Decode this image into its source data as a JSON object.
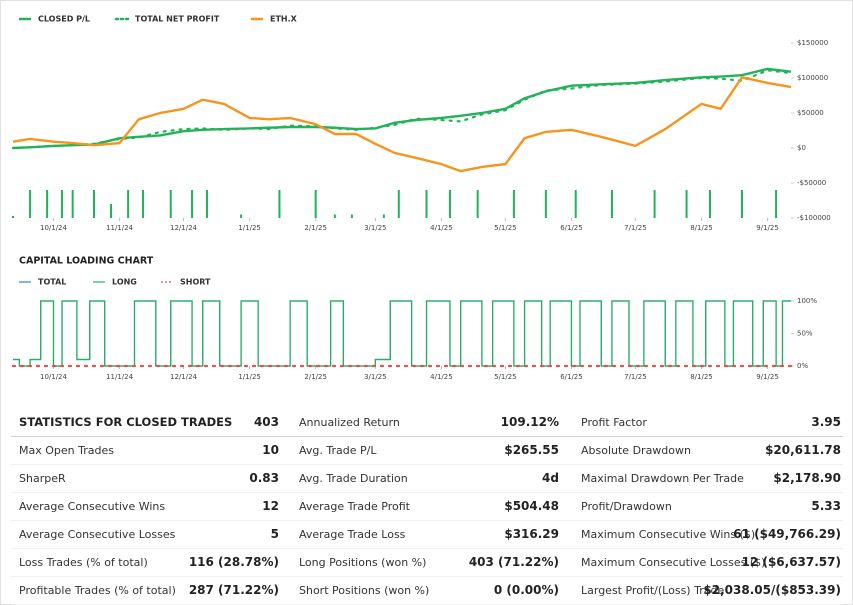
{
  "chart_data": [
    {
      "type": "line",
      "legend": "top-left",
      "xlim": [
        "9/12/24",
        "9/12/25"
      ],
      "xticks": [
        "10/1/24",
        "11/1/24",
        "12/1/24",
        "1/1/25",
        "2/1/25",
        "3/1/25",
        "4/1/25",
        "5/1/25",
        "6/1/25",
        "7/1/25",
        "8/1/25",
        "9/1/25"
      ],
      "ylim": [
        -100000,
        150000
      ],
      "yticks": [
        {
          "value": 150000,
          "label": "$150000"
        },
        {
          "value": 100000,
          "label": "$100000"
        },
        {
          "value": 50000,
          "label": "$50000"
        },
        {
          "value": 0,
          "label": "$0"
        },
        {
          "value": -50000,
          "label": "-$50000"
        },
        {
          "value": -100000,
          "label": "-$100000"
        }
      ],
      "x": [
        "9/12/24",
        "9/20/24",
        "10/1/24",
        "10/10/24",
        "10/20/24",
        "11/1/24",
        "11/10/24",
        "11/20/24",
        "12/1/24",
        "12/10/24",
        "12/20/24",
        "1/1/25",
        "1/10/25",
        "1/20/25",
        "2/1/25",
        "2/10/25",
        "2/20/25",
        "3/1/25",
        "3/10/25",
        "3/20/25",
        "4/1/25",
        "4/10/25",
        "4/20/25",
        "5/1/25",
        "5/10/25",
        "5/20/25",
        "6/1/25",
        "6/15/25",
        "7/1/25",
        "7/15/25",
        "8/1/25",
        "8/10/25",
        "8/20/25",
        "9/1/25",
        "9/12/25"
      ],
      "series": [
        {
          "name": "CLOSED P/L",
          "color": "#22b35a",
          "style": "solid",
          "values": [
            0,
            1000,
            3000,
            4000,
            5000,
            14000,
            16000,
            18000,
            24000,
            26000,
            27000,
            28000,
            29000,
            30000,
            30000,
            29000,
            27000,
            28000,
            36000,
            40000,
            43000,
            46000,
            50000,
            56000,
            71000,
            81000,
            89000,
            91000,
            93000,
            97000,
            101000,
            102000,
            104000,
            113000,
            109000
          ]
        },
        {
          "name": "TOTAL NET PROFIT",
          "color": "#22b35a",
          "style": "dotted",
          "values": [
            0,
            1000,
            3000,
            4000,
            6000,
            13000,
            15000,
            23000,
            27000,
            28000,
            26000,
            28000,
            27000,
            32000,
            31000,
            28000,
            26000,
            29000,
            33000,
            42000,
            40000,
            38000,
            48000,
            54000,
            69000,
            82000,
            85000,
            90000,
            92000,
            95000,
            100000,
            99000,
            96000,
            111000,
            107000
          ]
        },
        {
          "name": "ETH.X",
          "color": "#f5951f",
          "style": "solid",
          "values": [
            9000,
            13000,
            9000,
            7000,
            4000,
            7000,
            41000,
            50000,
            56000,
            69000,
            63000,
            43000,
            41000,
            43000,
            34000,
            20000,
            20000,
            6000,
            -7000,
            -14000,
            -23000,
            -33000,
            -27000,
            -23000,
            14000,
            23000,
            26000,
            16000,
            3000,
            27000,
            63000,
            56000,
            101000,
            93000,
            87000
          ]
        },
        {
          "type": "bar",
          "color": "#22b35a",
          "x": [
            "9/12/24",
            "9/20/24",
            "9/28/24",
            "10/5/24",
            "10/10/24",
            "10/20/24",
            "10/28/24",
            "11/5/24",
            "11/12/24",
            "11/25/24",
            "12/5/24",
            "12/12/24",
            "12/28/24",
            "1/15/25",
            "2/1/25",
            "2/10/25",
            "2/18/25",
            "3/5/25",
            "3/12/25",
            "3/25/25",
            "4/5/25",
            "4/18/25",
            "5/5/25",
            "5/20/25",
            "6/3/25",
            "6/20/25",
            "7/10/25",
            "7/25/25",
            "8/5/25",
            "8/20/25",
            "9/5/25"
          ],
          "values": [
            -97000,
            -60000,
            -60000,
            -60000,
            -60000,
            -60000,
            -80000,
            -60000,
            -60000,
            -60000,
            -60000,
            -60000,
            -95000,
            -60000,
            -60000,
            -95000,
            -95000,
            -95000,
            -60000,
            -60000,
            -60000,
            -60000,
            -60000,
            -60000,
            -60000,
            -60000,
            -60000,
            -60000,
            -60000,
            -60000,
            -60000
          ]
        }
      ]
    },
    {
      "type": "line",
      "title": "CAPITAL LOADING CHART",
      "step": true,
      "legend": "top-left",
      "xlim": [
        "9/12/24",
        "9/12/25"
      ],
      "xticks": [
        "10/1/24",
        "11/1/24",
        "12/1/24",
        "1/1/25",
        "2/1/25",
        "3/1/25",
        "4/1/25",
        "5/1/25",
        "6/1/25",
        "7/1/25",
        "8/1/25",
        "9/1/25"
      ],
      "ylim": [
        0,
        100
      ],
      "yticks": [
        {
          "value": 100,
          "label": "100%"
        },
        {
          "value": 50,
          "label": "50%"
        },
        {
          "value": 0,
          "label": "0%"
        }
      ],
      "x": [
        "9/12/24",
        "9/15/24",
        "9/20/24",
        "9/25/24",
        "10/1/24",
        "10/5/24",
        "10/12/24",
        "10/18/24",
        "10/25/24",
        "11/1/24",
        "11/8/24",
        "11/18/24",
        "11/25/24",
        "12/5/24",
        "12/10/24",
        "12/18/24",
        "12/28/24",
        "1/5/25",
        "1/20/25",
        "1/28/25",
        "2/8/25",
        "2/14/25",
        "3/1/25",
        "3/8/25",
        "3/18/25",
        "3/25/25",
        "4/5/25",
        "4/10/25",
        "4/20/25",
        "4/25/25",
        "5/5/25",
        "5/10/25",
        "5/18/25",
        "5/22/25",
        "6/1/25",
        "6/5/25",
        "6/15/25",
        "6/20/25",
        "6/28/25",
        "7/5/25",
        "7/15/25",
        "7/20/25",
        "7/28/25",
        "8/3/25",
        "8/12/25",
        "8/16/25",
        "8/25/25",
        "8/30/25",
        "9/5/25",
        "9/8/25",
        "9/12/25"
      ],
      "series": [
        {
          "name": "TOTAL",
          "color": "#3b7dd8",
          "style": "solid",
          "values": [
            10,
            0,
            10,
            100,
            0,
            100,
            10,
            100,
            0,
            0,
            100,
            0,
            100,
            0,
            100,
            0,
            100,
            0,
            100,
            0,
            100,
            0,
            10,
            100,
            0,
            100,
            0,
            100,
            0,
            100,
            0,
            100,
            0,
            100,
            0,
            100,
            0,
            100,
            0,
            100,
            0,
            100,
            0,
            100,
            0,
            100,
            0,
            100,
            0,
            100,
            100
          ]
        },
        {
          "name": "LONG",
          "color": "#22b35a",
          "style": "solid",
          "values": [
            10,
            0,
            10,
            100,
            0,
            100,
            10,
            100,
            0,
            0,
            100,
            0,
            100,
            0,
            100,
            0,
            100,
            0,
            100,
            0,
            100,
            0,
            10,
            100,
            0,
            100,
            0,
            100,
            0,
            100,
            0,
            100,
            0,
            100,
            0,
            100,
            0,
            100,
            0,
            100,
            0,
            100,
            0,
            100,
            0,
            100,
            0,
            100,
            0,
            100,
            100
          ]
        },
        {
          "name": "SHORT",
          "color": "#e0524f",
          "style": "dotted",
          "values": [
            0,
            0,
            0,
            0,
            0,
            0,
            0,
            0,
            0,
            0,
            0,
            0,
            0,
            0,
            0,
            0,
            0,
            0,
            0,
            0,
            0,
            0,
            0,
            0,
            0,
            0,
            0,
            0,
            0,
            0,
            0,
            0,
            0,
            0,
            0,
            0,
            0,
            0,
            0,
            0,
            0,
            0,
            0,
            0,
            0,
            0,
            0,
            0,
            0,
            0,
            0
          ]
        }
      ]
    }
  ],
  "statistics": {
    "rows": [
      [
        "STATISTICS FOR CLOSED TRADES",
        "403",
        "Annualized Return",
        "109.12%",
        "Profit Factor",
        "3.95"
      ],
      [
        "Max Open Trades",
        "10",
        "Avg. Trade P/L",
        "$265.55",
        "Absolute Drawdown",
        "$20,611.78"
      ],
      [
        "SharpeR",
        "0.83",
        "Avg. Trade Duration",
        "4d",
        "Maximal Drawdown Per Trade",
        "$2,178.90"
      ],
      [
        "Average Consecutive Wins",
        "12",
        "Average Trade Profit",
        "$504.48",
        "Profit/Drawdown",
        "5.33"
      ],
      [
        "Average Consecutive Losses",
        "5",
        "Average Trade Loss",
        "$316.29",
        "Maximum Consecutive Wins ($)",
        "61 ($49,766.29)"
      ],
      [
        "Loss Trades (% of total)",
        "116 (28.78%)",
        "Long Positions (won %)",
        "403 (71.22%)",
        "Maximum Consecutive Losses ($)",
        "12 ($6,637.57)"
      ],
      [
        "Profitable Trades (% of total)",
        "287 (71.22%)",
        "Short Positions (won %)",
        "0 (0.00%)",
        "Largest Profit/(Loss) Trade",
        "$2,038.05/($853.39)"
      ]
    ]
  }
}
